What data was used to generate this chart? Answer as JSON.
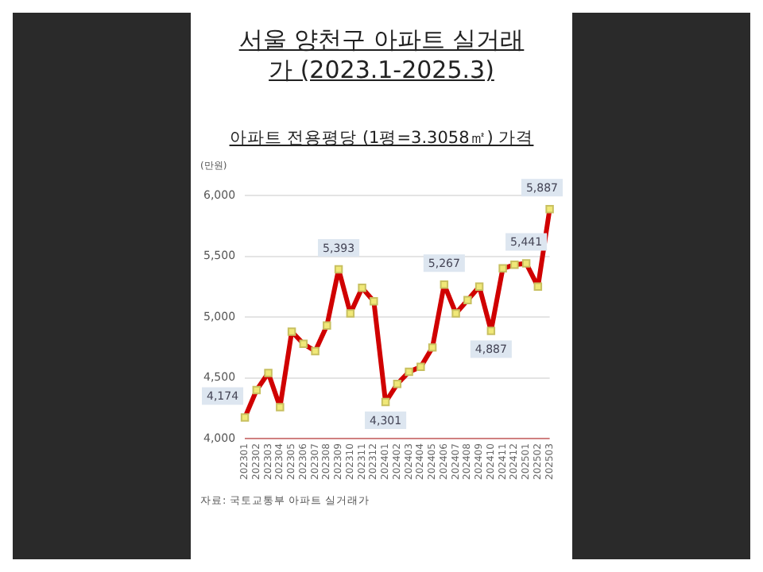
{
  "chart_data": {
    "type": "line",
    "title": "서울 양천구 아파트 실거래가 (2023.1-2025.3)",
    "subtitle": "아파트 전용평당 (1평=3.3058㎡) 가격",
    "ylabel": "(만원)",
    "categories": [
      "202301",
      "202302",
      "202303",
      "202304",
      "202305",
      "202306",
      "202307",
      "202308",
      "202309",
      "202310",
      "202311",
      "202312",
      "202401",
      "202402",
      "202403",
      "202404",
      "202405",
      "202406",
      "202407",
      "202408",
      "202409",
      "202410",
      "202411",
      "202412",
      "202501",
      "202502",
      "202503"
    ],
    "series": [
      {
        "color": "#d00000",
        "values": [
          4174,
          4400,
          4540,
          4260,
          4880,
          4780,
          4720,
          4930,
          5393,
          5030,
          5240,
          5130,
          4301,
          4450,
          4550,
          4590,
          4750,
          5267,
          5030,
          5140,
          5250,
          4887,
          5400,
          5430,
          5441,
          5250,
          5887
        ],
        "value_labels": [
          "4,174",
          null,
          null,
          null,
          null,
          null,
          null,
          null,
          "5,393",
          null,
          null,
          null,
          "4,301",
          null,
          null,
          null,
          null,
          "5,267",
          null,
          null,
          null,
          "4,887",
          null,
          null,
          "5,441",
          null,
          "5,887"
        ]
      }
    ],
    "ylim": [
      4000,
      6000
    ],
    "yticks": [
      {
        "value": 4000,
        "label": "4,000"
      },
      {
        "value": 4500,
        "label": "4,500"
      },
      {
        "value": 5000,
        "label": "5,000"
      },
      {
        "value": 5500,
        "label": "5,500"
      },
      {
        "value": 6000,
        "label": "6,000"
      }
    ],
    "grid": "y",
    "legend": false,
    "marker": "square",
    "line_style": "solid",
    "annotations": [
      "자료: 국토교통부  아파트 실거래가"
    ]
  }
}
